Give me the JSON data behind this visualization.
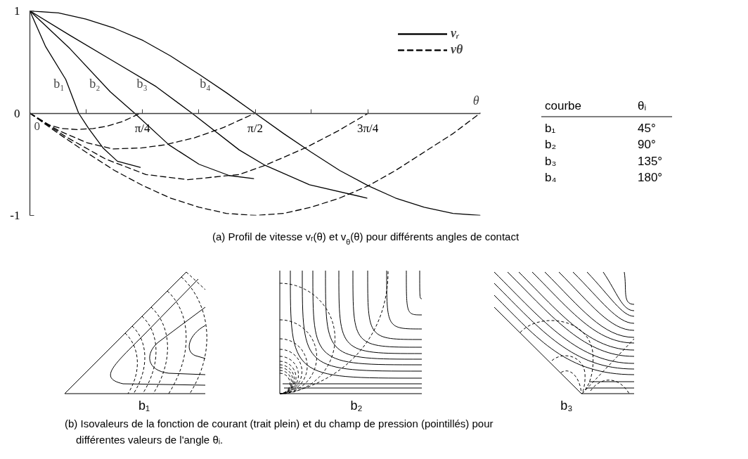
{
  "chart_data": [
    {
      "type": "line",
      "xlabel": "θ",
      "xlim": [
        0,
        3.142
      ],
      "xticks": [
        0,
        {
          "value": 0.393,
          "label": null
        },
        {
          "value": 0.785,
          "label": "π/4"
        },
        {
          "value": 1.178,
          "label": null
        },
        {
          "value": 1.571,
          "label": "π/2"
        },
        {
          "value": 1.963,
          "label": null
        },
        {
          "value": 2.356,
          "label": "3π/4"
        }
      ],
      "ylim": [
        -1,
        1
      ],
      "yticks": [
        -1,
        0,
        1
      ],
      "legend": "top right",
      "series": [
        {
          "name": "vᵣ",
          "color": "#000000",
          "line_style": "solid",
          "x": [
            0,
            0.11,
            0.25,
            0.34,
            0.41,
            0.51,
            0.61,
            0.77
          ],
          "values": [
            1,
            0.65,
            0.33,
            0,
            -0.15,
            -0.34,
            -0.47,
            -0.53
          ]
        },
        {
          "color": "#000000",
          "line_style": "solid",
          "x": [
            0,
            0.28,
            0.56,
            0.73,
            0.97,
            1.18,
            1.39,
            1.56
          ],
          "values": [
            1,
            0.63,
            0.21,
            0,
            -0.31,
            -0.5,
            -0.61,
            -0.64
          ]
        },
        {
          "color": "#000000",
          "line_style": "solid",
          "x": [
            0,
            0.28,
            0.58,
            0.88,
            1.13,
            1.46,
            1.64,
            1.95,
            2.35
          ],
          "values": [
            1,
            0.76,
            0.51,
            0.26,
            0,
            -0.36,
            -0.51,
            -0.7,
            -0.83
          ]
        },
        {
          "color": "#000000",
          "line_style": "solid",
          "x": [
            0,
            0.2,
            0.39,
            0.59,
            0.79,
            0.98,
            1.18,
            1.37,
            1.57,
            1.77,
            1.96,
            2.16,
            2.36,
            2.55,
            2.75,
            2.95,
            3.14
          ],
          "values": [
            1,
            0.98,
            0.92,
            0.83,
            0.71,
            0.56,
            0.38,
            0.2,
            0,
            -0.2,
            -0.38,
            -0.56,
            -0.71,
            -0.83,
            -0.92,
            -0.98,
            -1
          ]
        },
        {
          "name": "vθ",
          "color": "#000000",
          "line_style": "dashed",
          "x": [
            0,
            0.12,
            0.22,
            0.33,
            0.44,
            0.53,
            0.65,
            0.77
          ],
          "values": [
            0,
            -0.11,
            -0.15,
            -0.16,
            -0.15,
            -0.13,
            -0.08,
            0
          ]
        },
        {
          "color": "#000000",
          "line_style": "dashed",
          "x": [
            0,
            0.2,
            0.4,
            0.58,
            0.78,
            0.94,
            1.15,
            1.35,
            1.57
          ],
          "values": [
            0,
            -0.17,
            -0.29,
            -0.35,
            -0.34,
            -0.31,
            -0.24,
            -0.14,
            0
          ]
        },
        {
          "color": "#000000",
          "line_style": "dashed",
          "x": [
            0,
            0.25,
            0.53,
            0.81,
            1.1,
            1.46,
            1.64,
            1.92,
            2.14,
            2.36
          ],
          "values": [
            0,
            -0.23,
            -0.45,
            -0.6,
            -0.65,
            -0.6,
            -0.51,
            -0.34,
            -0.18,
            0
          ]
        },
        {
          "color": "#000000",
          "line_style": "dashed",
          "x": [
            0,
            0.2,
            0.39,
            0.59,
            0.79,
            0.98,
            1.18,
            1.37,
            1.57,
            1.77,
            1.96,
            2.16,
            2.36,
            2.55,
            2.75,
            2.95,
            3.14
          ],
          "values": [
            0,
            -0.2,
            -0.38,
            -0.56,
            -0.71,
            -0.83,
            -0.92,
            -0.98,
            -1,
            -0.98,
            -0.92,
            -0.83,
            -0.71,
            -0.56,
            -0.38,
            -0.2,
            0
          ]
        }
      ],
      "annotations": [
        {
          "text": "b₁",
          "x": 0.26,
          "y": 0.29
        },
        {
          "text": "b₂",
          "x": 0.51,
          "y": 0.29
        },
        {
          "text": "b₃",
          "x": 0.84,
          "y": 0.29
        },
        {
          "text": "b₄",
          "x": 1.28,
          "y": 0.29
        },
        "courbe",
        "θᵢ",
        "b₁",
        "45°",
        "b₂",
        "90°",
        "b₃",
        "135°",
        "b₄",
        "180°",
        "(a) Profil de vitesse vᵣ(θ) et v$_{θ}$(θ) pour différents angles de contact"
      ]
    },
    {
      "type": "other",
      "categories": [
        "b₁",
        "b₂",
        "b₃"
      ],
      "annotations": [
        "(b) Isovaleurs de la fonction de courant (trait plein) et du champ de pression (pointillés) pour différentes valeurs de l'angle θᵢ."
      ]
    }
  ]
}
